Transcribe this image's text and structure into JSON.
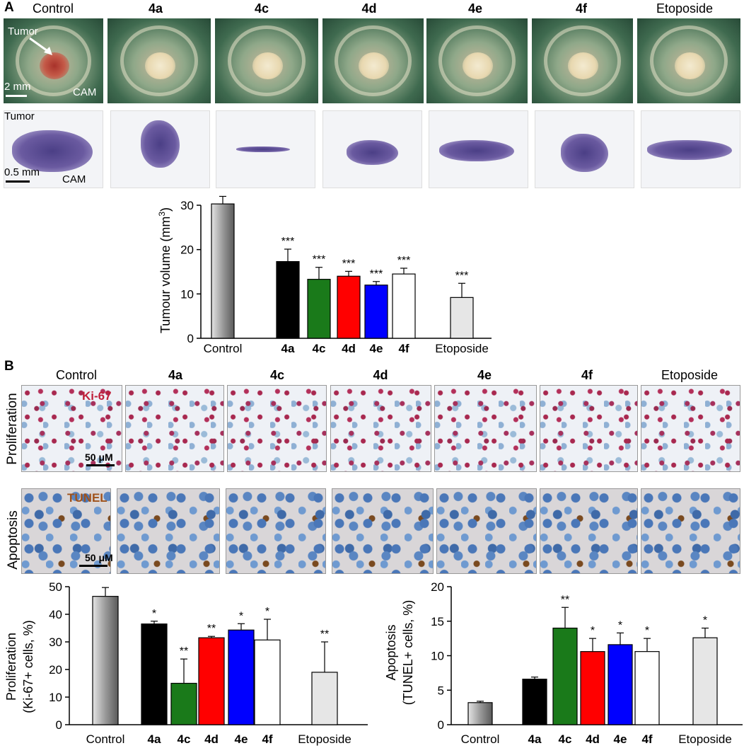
{
  "panel_labels": {
    "a": "A",
    "b": "B"
  },
  "conditions": [
    "Control",
    "4a",
    "4c",
    "4d",
    "4e",
    "4f",
    "Etoposide"
  ],
  "panel_a": {
    "photo_labels": {
      "tumor": "Tumor",
      "cam": "CAM",
      "scale_top": "2 mm",
      "scale_hist": "0.5 mm",
      "tumor_hist": "Tumor",
      "cam_hist": "CAM"
    }
  },
  "panel_b": {
    "row_labels": {
      "proliferation": "Proliferation",
      "apoptosis": "Apoptosis"
    },
    "stain_labels": {
      "ki67": "Ki-67",
      "tunel": "TUNEL"
    },
    "scale": "50 μM"
  },
  "colors": {
    "control": "#9a9a9a",
    "4a": "#000000",
    "4c": "#1a7a1a",
    "4d": "#ff0000",
    "4e": "#0000ff",
    "4f": "#ffffff",
    "Etoposide": "#e6e6e6"
  },
  "chart_data": [
    {
      "type": "bar",
      "ylabel": "Tumour volume (mm3)",
      "ylim": [
        0,
        30
      ],
      "yticks": [
        0,
        10,
        20,
        30
      ],
      "categories": [
        "Control",
        "4a",
        "4c",
        "4d",
        "4e",
        "4f",
        "Etoposide"
      ],
      "values": [
        30.3,
        17.3,
        13.3,
        14.0,
        12.0,
        14.5,
        9.2
      ],
      "errors": [
        1.7,
        2.8,
        2.7,
        1.1,
        0.8,
        1.3,
        3.2
      ],
      "significance": [
        "",
        "***",
        "***",
        "***",
        "***",
        "***",
        "***"
      ]
    },
    {
      "type": "bar",
      "ylabel_line1": "Proliferation",
      "ylabel_line2": "(Ki-67+ cells, %)",
      "ylim": [
        0,
        50
      ],
      "yticks": [
        0,
        10,
        20,
        30,
        40,
        50
      ],
      "categories": [
        "Control",
        "4a",
        "4c",
        "4d",
        "4e",
        "4f",
        "Etoposide"
      ],
      "values": [
        46.5,
        36.5,
        15.0,
        31.5,
        34.3,
        30.7,
        19.0
      ],
      "errors": [
        3.2,
        1.0,
        8.8,
        0.5,
        2.3,
        7.5,
        11.0
      ],
      "significance": [
        "",
        "*",
        "**",
        "**",
        "*",
        "*",
        "**"
      ]
    },
    {
      "type": "bar",
      "ylabel_line1": "Apoptosis",
      "ylabel_line2": "(TUNEL+ cells, %)",
      "ylim": [
        0,
        20
      ],
      "yticks": [
        0,
        5,
        10,
        15,
        20
      ],
      "categories": [
        "Control",
        "4a",
        "4c",
        "4d",
        "4e",
        "4f",
        "Etoposide"
      ],
      "values": [
        3.2,
        6.6,
        14.0,
        10.6,
        11.6,
        10.6,
        12.6
      ],
      "errors": [
        0.2,
        0.3,
        3.0,
        1.9,
        1.7,
        1.9,
        1.4
      ],
      "significance": [
        "",
        "",
        "**",
        "*",
        "*",
        "*",
        "*"
      ]
    }
  ]
}
